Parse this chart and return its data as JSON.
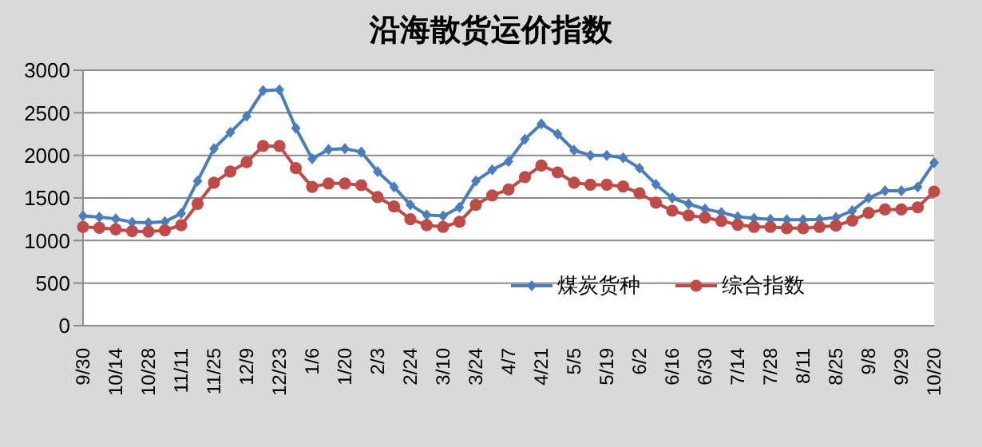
{
  "chart_data": {
    "type": "line",
    "title": "沿海散货运价指数",
    "categories": [
      "9/30",
      null,
      "10/14",
      null,
      "10/28",
      null,
      "11/11",
      null,
      "11/25",
      null,
      "12/9",
      null,
      "12/23",
      null,
      "1/6",
      null,
      "1/20",
      null,
      "2/3",
      null,
      "2/24",
      null,
      "3/10",
      null,
      "3/24",
      null,
      "4/7",
      null,
      "4/21",
      null,
      "5/5",
      null,
      "5/19",
      null,
      "6/2",
      null,
      "6/16",
      null,
      "6/30",
      null,
      "7/14",
      null,
      "7/28",
      null,
      "8/11",
      null,
      "8/25",
      null,
      "9/8",
      null,
      "9/29",
      null,
      "10/20"
    ],
    "series": [
      {
        "name": "煤炭货种",
        "color": "#4a7ebb",
        "marker": "diamond",
        "values": [
          1290,
          1275,
          1255,
          1215,
          1210,
          1220,
          1320,
          1700,
          2080,
          2270,
          2460,
          2760,
          2770,
          2320,
          1960,
          2070,
          2080,
          2040,
          1810,
          1630,
          1420,
          1300,
          1290,
          1390,
          1700,
          1830,
          1930,
          2190,
          2370,
          2250,
          2060,
          2000,
          2000,
          1970,
          1850,
          1660,
          1500,
          1430,
          1370,
          1330,
          1280,
          1260,
          1250,
          1245,
          1245,
          1250,
          1270,
          1350,
          1500,
          1585,
          1585,
          1630,
          1915
        ]
      },
      {
        "name": "综合指数",
        "color": "#be4b48",
        "marker": "circle",
        "values": [
          1160,
          1150,
          1130,
          1110,
          1105,
          1120,
          1180,
          1430,
          1680,
          1810,
          1920,
          2110,
          2110,
          1850,
          1630,
          1670,
          1670,
          1650,
          1510,
          1400,
          1250,
          1180,
          1160,
          1220,
          1420,
          1530,
          1600,
          1745,
          1880,
          1800,
          1680,
          1655,
          1655,
          1635,
          1555,
          1445,
          1350,
          1295,
          1270,
          1230,
          1185,
          1160,
          1160,
          1145,
          1145,
          1160,
          1175,
          1235,
          1325,
          1365,
          1365,
          1390,
          1575
        ]
      }
    ],
    "ylim": [
      0,
      3000
    ],
    "yticks": [
      0,
      500,
      1000,
      1500,
      2000,
      2500,
      3000
    ],
    "grid": "y",
    "legend": "bottom right"
  }
}
